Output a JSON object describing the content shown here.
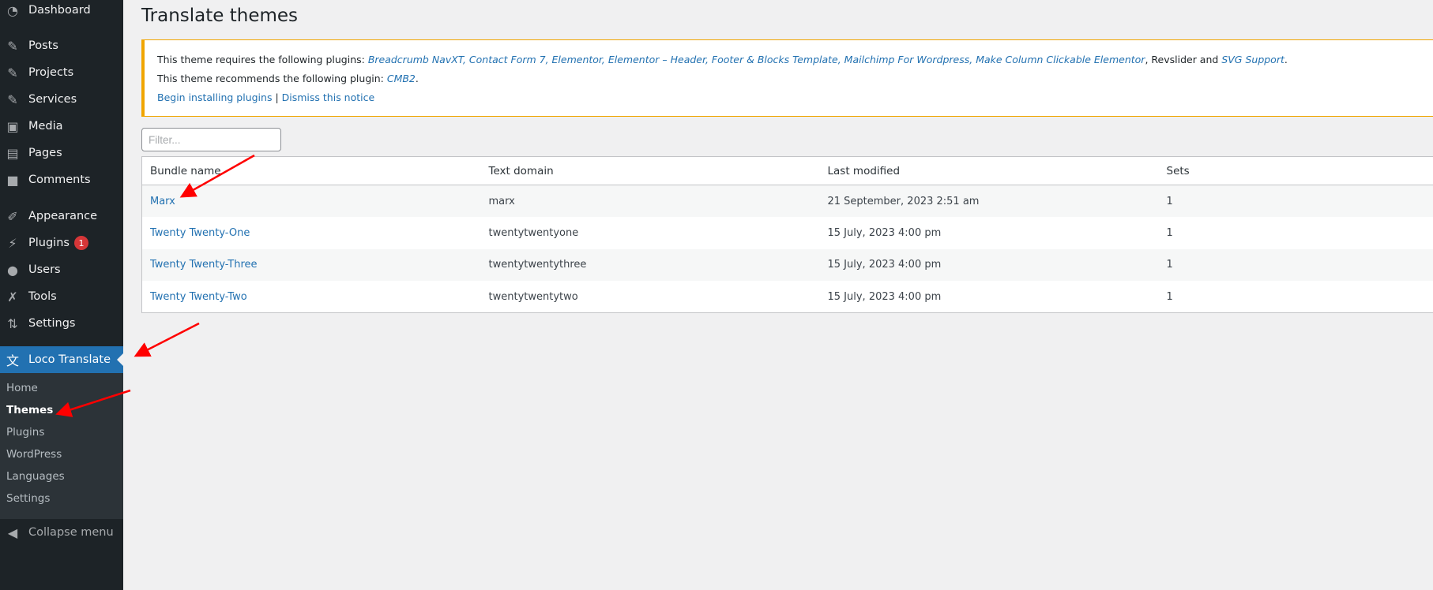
{
  "sidebar": {
    "items": [
      {
        "label": "Dashboard",
        "icon": "dashboard-icon",
        "glyph": "◔"
      },
      {
        "label": "Posts",
        "icon": "pin-icon",
        "glyph": "✎"
      },
      {
        "label": "Projects",
        "icon": "pin-icon",
        "glyph": "✎"
      },
      {
        "label": "Services",
        "icon": "pin-icon",
        "glyph": "✎"
      },
      {
        "label": "Media",
        "icon": "media-icon",
        "glyph": "▣"
      },
      {
        "label": "Pages",
        "icon": "pages-icon",
        "glyph": "▤"
      },
      {
        "label": "Comments",
        "icon": "comment-icon",
        "glyph": "■"
      },
      {
        "label": "Appearance",
        "icon": "brush-icon",
        "glyph": "✐"
      },
      {
        "label": "Plugins",
        "icon": "plug-icon",
        "glyph": "⚡",
        "badge": "1"
      },
      {
        "label": "Users",
        "icon": "user-icon",
        "glyph": "●"
      },
      {
        "label": "Tools",
        "icon": "wrench-icon",
        "glyph": "✗"
      },
      {
        "label": "Settings",
        "icon": "settings-icon",
        "glyph": "⇅"
      },
      {
        "label": "Loco Translate",
        "icon": "translate-icon",
        "glyph": "文"
      }
    ],
    "submenu": [
      "Home",
      "Themes",
      "Plugins",
      "WordPress",
      "Languages",
      "Settings"
    ],
    "collapse": "Collapse menu"
  },
  "page": {
    "title": "Translate themes"
  },
  "notice": {
    "req_prefix": "This theme requires the following plugins: ",
    "req_links": "Breadcrumb NavXT, Contact Form 7, Elementor, Elementor – Header, Footer & Blocks Template, Mailchimp For Wordpress, Make Column Clickable Elementor",
    "req_mid": ", Revslider and ",
    "req_last": "SVG Support",
    "rec_prefix": "This theme recommends the following plugin: ",
    "rec_link": "CMB2",
    "begin": "Begin installing plugins",
    "sep": " | ",
    "dismiss": "Dismiss this notice"
  },
  "filter": {
    "placeholder": "Filter...",
    "value": ""
  },
  "table": {
    "headers": [
      "Bundle name",
      "Text domain",
      "Last modified",
      "Sets"
    ],
    "rows": [
      [
        "Marx",
        "marx",
        "21 September, 2023 2:51 am",
        "1"
      ],
      [
        "Twenty Twenty-One",
        "twentytwentyone",
        "15 July, 2023 4:00 pm",
        "1"
      ],
      [
        "Twenty Twenty-Three",
        "twentytwentythree",
        "15 July, 2023 4:00 pm",
        "1"
      ],
      [
        "Twenty Twenty-Two",
        "twentytwentytwo",
        "15 July, 2023 4:00 pm",
        "1"
      ]
    ]
  },
  "colors": {
    "sidebar": "#1d2327",
    "active": "#2271b1",
    "link": "#2271b1",
    "notice_border": "#f0a500",
    "annotation": "#ff0000"
  }
}
